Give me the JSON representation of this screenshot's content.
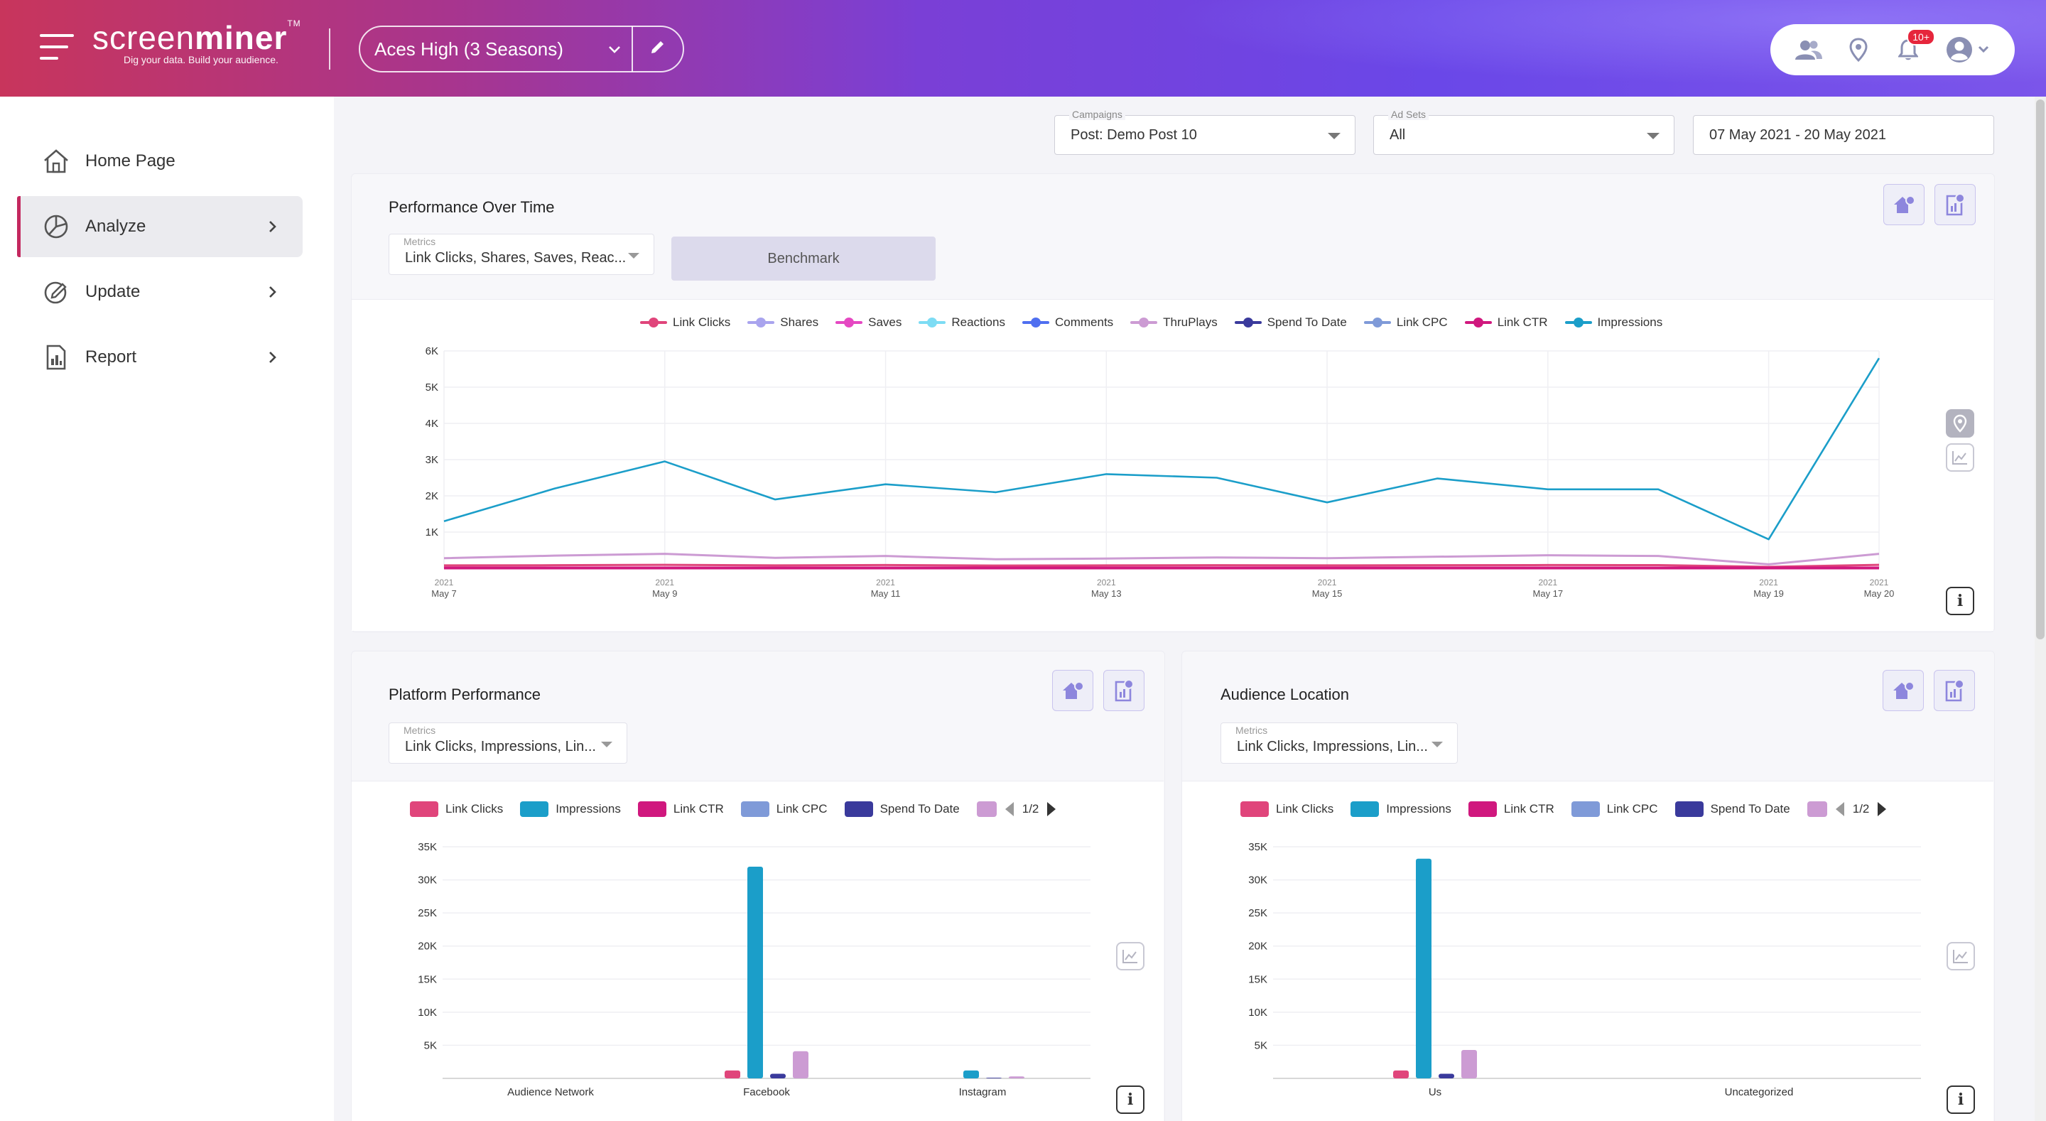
{
  "header": {
    "brand_light": "screen",
    "brand_bold": "miner",
    "trademark": "TM",
    "tagline": "Dig your data. Build your audience.",
    "project": "Aces High (3 Seasons)",
    "notification_badge": "10+"
  },
  "sidebar": {
    "items": [
      {
        "label": "Home Page",
        "icon": "home-icon"
      },
      {
        "label": "Analyze",
        "icon": "pie-chart-icon",
        "active": true
      },
      {
        "label": "Update",
        "icon": "edit-badge-icon"
      },
      {
        "label": "Report",
        "icon": "report-icon"
      }
    ]
  },
  "filters": {
    "campaigns": {
      "label": "Campaigns",
      "value": "Post: Demo Post 10"
    },
    "adsets": {
      "label": "Ad Sets",
      "value": "All"
    },
    "date_range": "07 May 2021 - 20 May 2021"
  },
  "performance": {
    "title": "Performance Over Time",
    "metrics_label": "Metrics",
    "metrics_value": "Link Clicks, Shares, Saves, Reac...",
    "benchmark_label": "Benchmark"
  },
  "platform": {
    "title": "Platform Performance",
    "metrics_label": "Metrics",
    "metrics_value": "Link Clicks, Impressions, Lin...",
    "pager": "1/2"
  },
  "audience": {
    "title": "Audience Location",
    "metrics_label": "Metrics",
    "metrics_value": "Link Clicks, Impressions, Lin...",
    "pager": "1/2"
  },
  "colors": {
    "link_clicks": "#e0457b",
    "shares": "#a9a4ee",
    "saves": "#e548c2",
    "reactions": "#7ddcf4",
    "comments": "#4f6ff0",
    "thruplays": "#cc9bd3",
    "spend_to_date": "#3a3a9c",
    "link_cpc": "#7f9ad8",
    "link_ctr": "#d0187e",
    "impressions": "#1b9ec9"
  },
  "chart_data": [
    {
      "type": "line",
      "x": [
        "2021 May 7",
        "2021 May 8",
        "2021 May 9",
        "2021 May 10",
        "2021 May 11",
        "2021 May 12",
        "2021 May 13",
        "2021 May 14",
        "2021 May 15",
        "2021 May 16",
        "2021 May 17",
        "2021 May 18",
        "2021 May 19",
        "2021 May 20"
      ],
      "tick_labels": [
        {
          "year": "2021",
          "day": "May 7"
        },
        {
          "year": "2021",
          "day": "May 9"
        },
        {
          "year": "2021",
          "day": "May 11"
        },
        {
          "year": "2021",
          "day": "May 13"
        },
        {
          "year": "2021",
          "day": "May 15"
        },
        {
          "year": "2021",
          "day": "May 17"
        },
        {
          "year": "2021",
          "day": "May 19"
        },
        {
          "year": "2021",
          "day": "May 20"
        }
      ],
      "y_ticks": [
        "1K",
        "2K",
        "3K",
        "4K",
        "5K",
        "6K"
      ],
      "ylim": [
        0,
        6000
      ],
      "legend": [
        "Link Clicks",
        "Shares",
        "Saves",
        "Reactions",
        "Comments",
        "ThruPlays",
        "Spend To Date",
        "Link CPC",
        "Link CTR",
        "Impressions"
      ],
      "legend_position": "top-center",
      "series": [
        {
          "name": "Impressions",
          "values": [
            1300,
            2200,
            2950,
            1900,
            2320,
            2100,
            2600,
            2500,
            1820,
            2480,
            2180,
            2180,
            800,
            5800
          ]
        },
        {
          "name": "ThruPlays",
          "values": [
            280,
            350,
            400,
            290,
            340,
            250,
            270,
            300,
            280,
            320,
            360,
            340,
            110,
            400
          ]
        },
        {
          "name": "Link Clicks",
          "values": [
            80,
            85,
            95,
            80,
            90,
            75,
            80,
            85,
            80,
            85,
            90,
            88,
            40,
            95
          ]
        },
        {
          "name": "Link CTR",
          "values": [
            10,
            10,
            10,
            10,
            10,
            10,
            10,
            10,
            10,
            10,
            10,
            10,
            10,
            10
          ]
        }
      ]
    },
    {
      "type": "bar",
      "categories": [
        "Audience Network",
        "Facebook",
        "Instagram"
      ],
      "y_ticks": [
        "5K",
        "10K",
        "15K",
        "20K",
        "25K",
        "30K",
        "35K"
      ],
      "ylim": [
        0,
        35000
      ],
      "legend": [
        "Link Clicks",
        "Impressions",
        "Link CTR",
        "Link CPC",
        "Spend To Date"
      ],
      "series": [
        {
          "name": "Link Clicks",
          "values": [
            0,
            1200,
            0
          ]
        },
        {
          "name": "Impressions",
          "values": [
            0,
            32000,
            1200
          ]
        },
        {
          "name": "Spend To Date",
          "values": [
            0,
            700,
            100
          ]
        },
        {
          "name": "ThruPlays",
          "values": [
            0,
            4100,
            300
          ]
        }
      ]
    },
    {
      "type": "bar",
      "categories": [
        "Us",
        "Uncategorized"
      ],
      "y_ticks": [
        "5K",
        "10K",
        "15K",
        "20K",
        "25K",
        "30K",
        "35K"
      ],
      "ylim": [
        0,
        35000
      ],
      "legend": [
        "Link Clicks",
        "Impressions",
        "Link CTR",
        "Link CPC",
        "Spend To Date"
      ],
      "series": [
        {
          "name": "Link Clicks",
          "values": [
            1200,
            0
          ]
        },
        {
          "name": "Impressions",
          "values": [
            33200,
            0
          ]
        },
        {
          "name": "Spend To Date",
          "values": [
            700,
            0
          ]
        },
        {
          "name": "ThruPlays",
          "values": [
            4300,
            0
          ]
        }
      ]
    }
  ]
}
